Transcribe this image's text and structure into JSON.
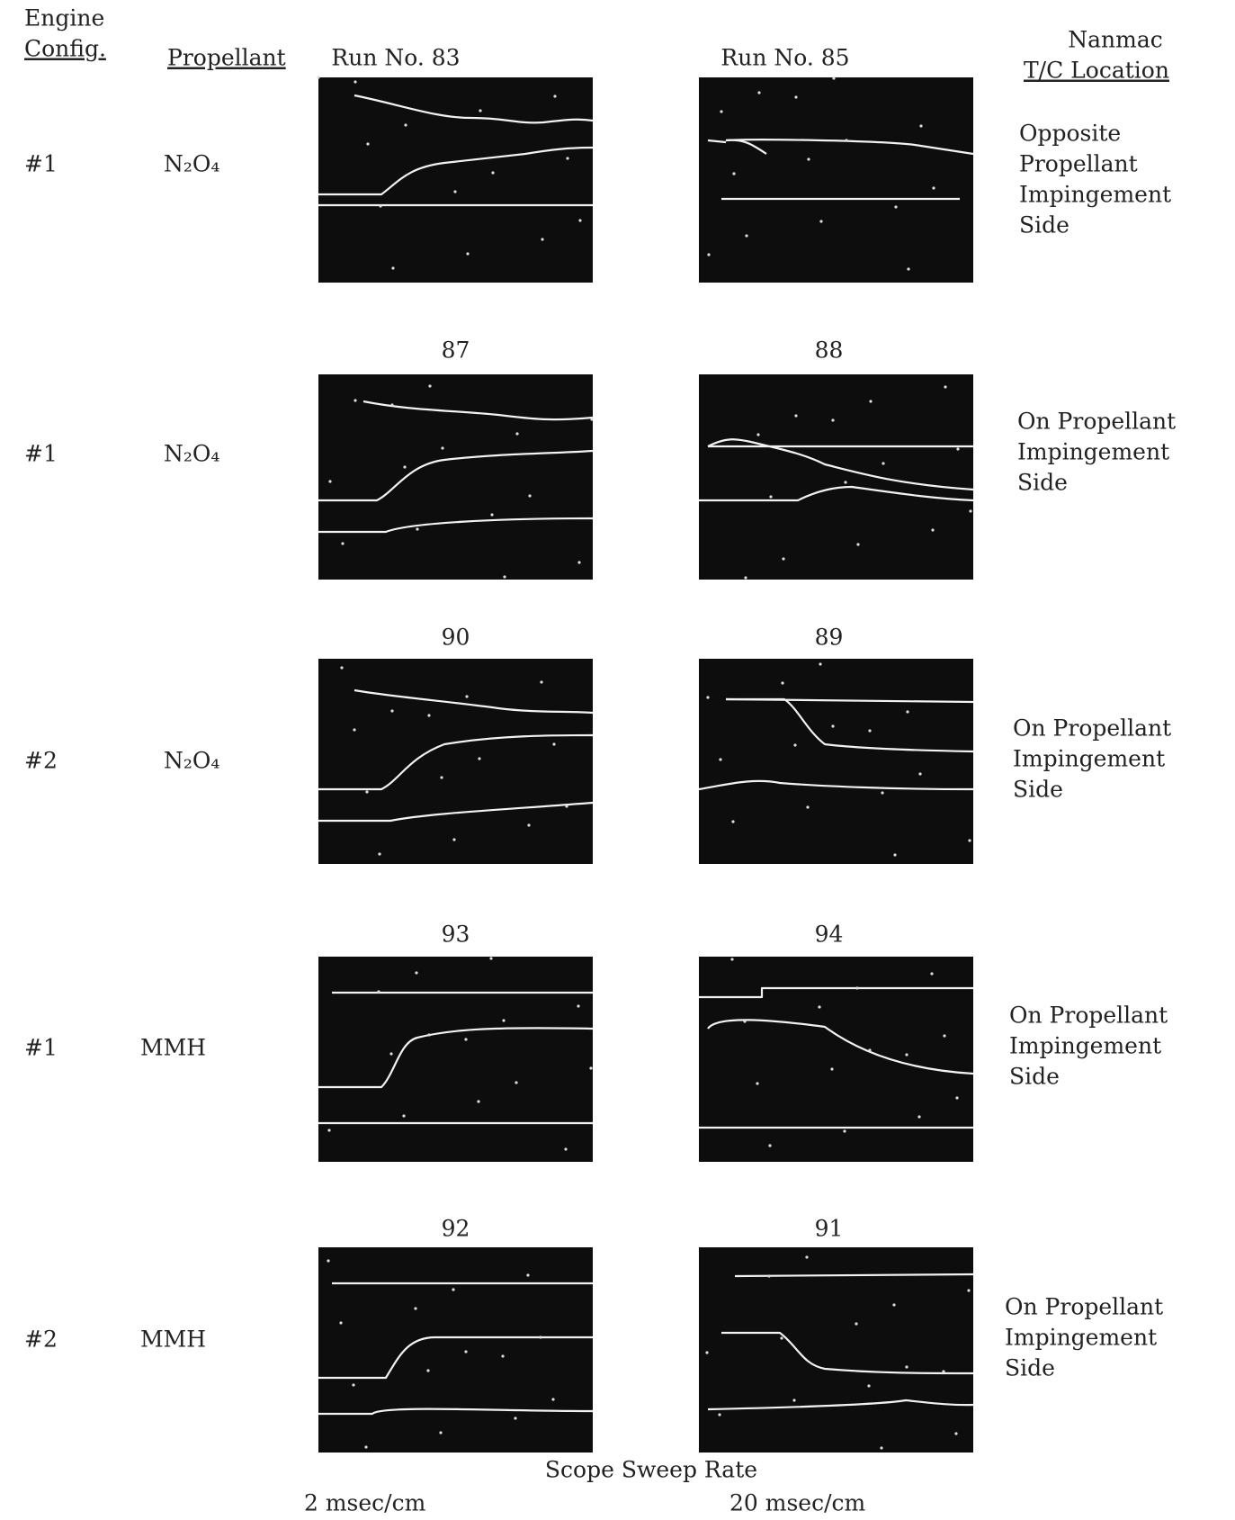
{
  "header": {
    "engine_config": [
      "Engine",
      "Config."
    ],
    "propellant": "Propellant",
    "location": [
      "Nanmac",
      "T/C Location"
    ]
  },
  "rows": [
    {
      "config": "#1",
      "propellant": "N₂O₄",
      "runs": [
        "Run No. 83",
        "Run No. 85"
      ],
      "location": [
        "Opposite",
        "Propellant",
        "Impingement",
        "Side"
      ]
    },
    {
      "config": "#1",
      "propellant": "N₂O₄",
      "runs": [
        "87",
        "88"
      ],
      "location": [
        "On Propellant",
        "Impingement",
        "Side"
      ]
    },
    {
      "config": "#2",
      "propellant": "N₂O₄",
      "runs": [
        "90",
        "89"
      ],
      "location": [
        "On Propellant",
        "Impingement",
        "Side"
      ]
    },
    {
      "config": "#1",
      "propellant": "MMH",
      "runs": [
        "93",
        "94"
      ],
      "location": [
        "On Propellant",
        "Impingement",
        "Side"
      ]
    },
    {
      "config": "#2",
      "propellant": "MMH",
      "runs": [
        "92",
        "91"
      ],
      "location": [
        "On Propellant",
        "Impingement",
        "Side"
      ]
    }
  ],
  "footer": {
    "title": "Scope Sweep Rate",
    "rates": [
      "2 msec/cm",
      "20 msec/cm"
    ]
  }
}
